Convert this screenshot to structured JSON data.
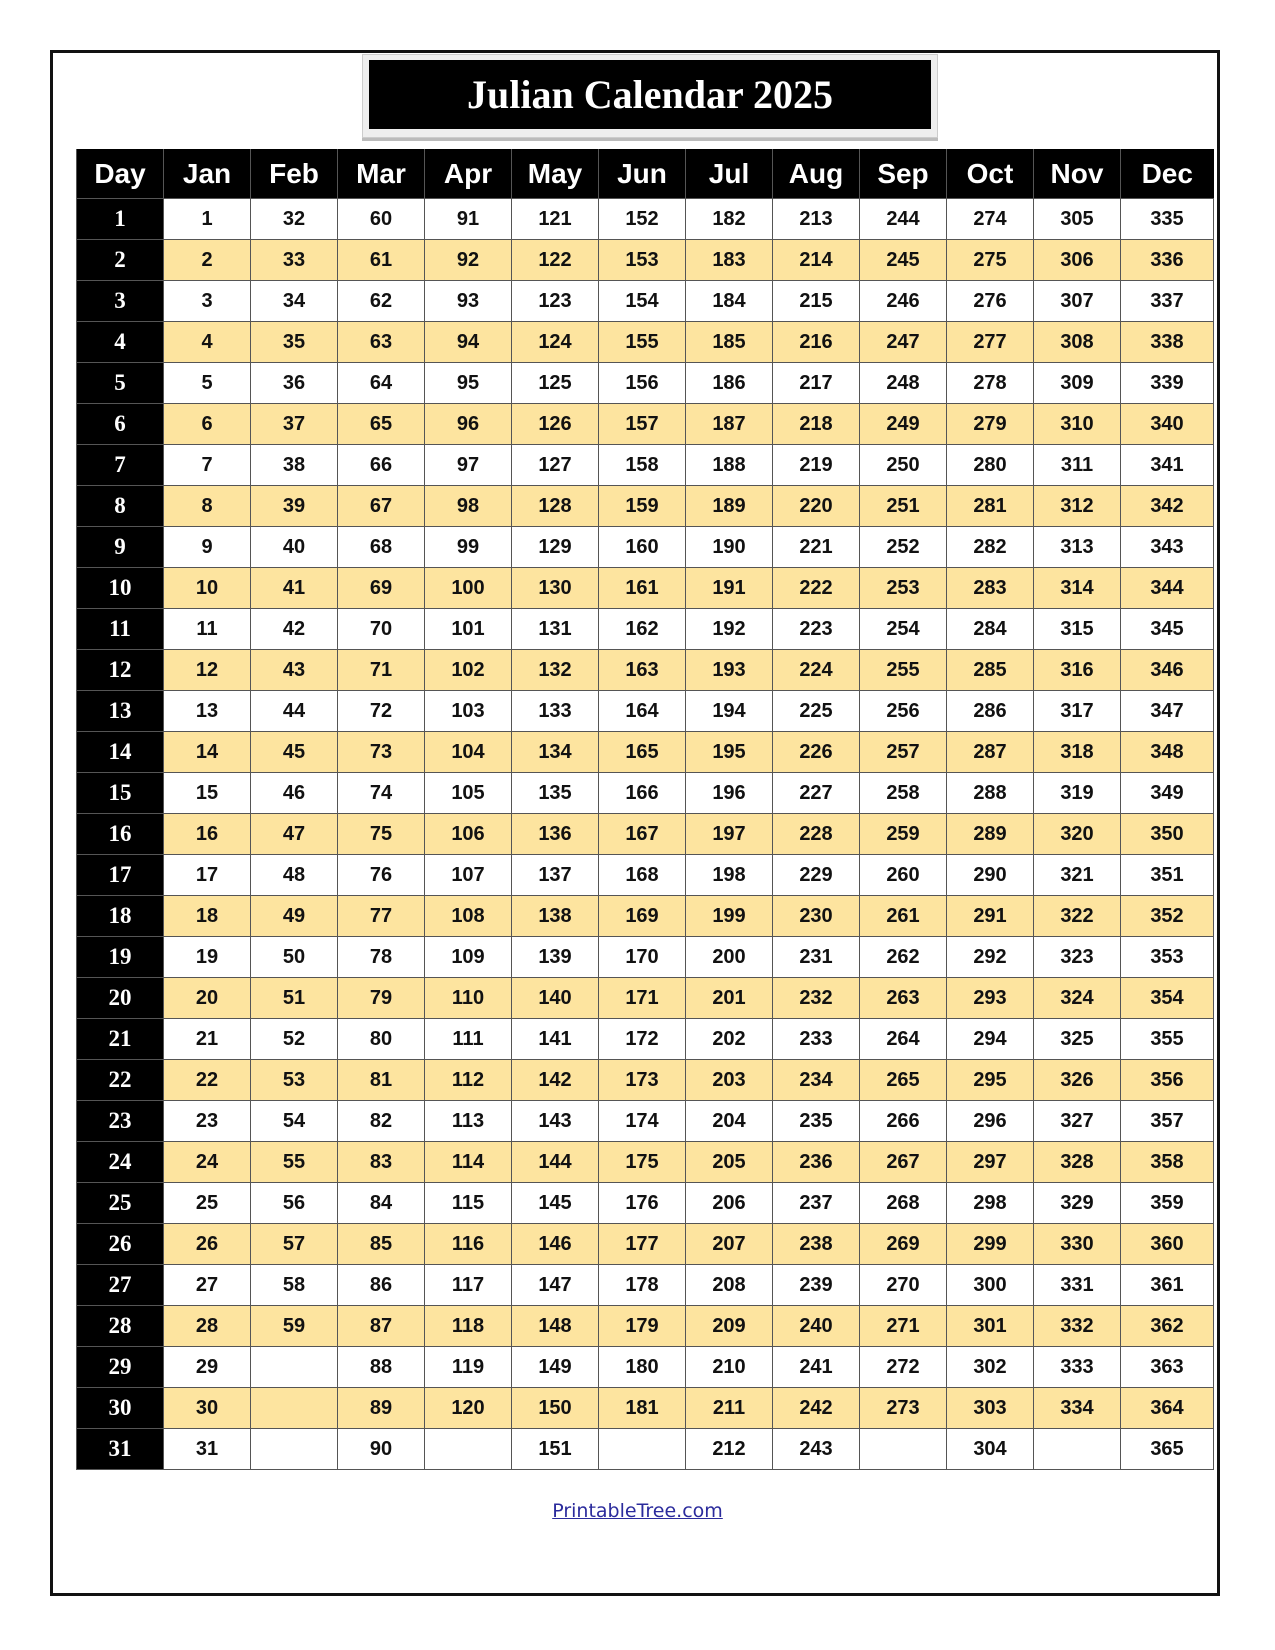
{
  "title": "Julian Calendar 2025",
  "headers": [
    "Day",
    "Jan",
    "Feb",
    "Mar",
    "Apr",
    "May",
    "Jun",
    "Jul",
    "Aug",
    "Sep",
    "Oct",
    "Nov",
    "Dec"
  ],
  "colors": {
    "header_bg": "#000000",
    "alt_row_bg": "#fde49f",
    "link": "#2b2b9c"
  },
  "rows": [
    [
      "1",
      "1",
      "32",
      "60",
      "91",
      "121",
      "152",
      "182",
      "213",
      "244",
      "274",
      "305",
      "335"
    ],
    [
      "2",
      "2",
      "33",
      "61",
      "92",
      "122",
      "153",
      "183",
      "214",
      "245",
      "275",
      "306",
      "336"
    ],
    [
      "3",
      "3",
      "34",
      "62",
      "93",
      "123",
      "154",
      "184",
      "215",
      "246",
      "276",
      "307",
      "337"
    ],
    [
      "4",
      "4",
      "35",
      "63",
      "94",
      "124",
      "155",
      "185",
      "216",
      "247",
      "277",
      "308",
      "338"
    ],
    [
      "5",
      "5",
      "36",
      "64",
      "95",
      "125",
      "156",
      "186",
      "217",
      "248",
      "278",
      "309",
      "339"
    ],
    [
      "6",
      "6",
      "37",
      "65",
      "96",
      "126",
      "157",
      "187",
      "218",
      "249",
      "279",
      "310",
      "340"
    ],
    [
      "7",
      "7",
      "38",
      "66",
      "97",
      "127",
      "158",
      "188",
      "219",
      "250",
      "280",
      "311",
      "341"
    ],
    [
      "8",
      "8",
      "39",
      "67",
      "98",
      "128",
      "159",
      "189",
      "220",
      "251",
      "281",
      "312",
      "342"
    ],
    [
      "9",
      "9",
      "40",
      "68",
      "99",
      "129",
      "160",
      "190",
      "221",
      "252",
      "282",
      "313",
      "343"
    ],
    [
      "10",
      "10",
      "41",
      "69",
      "100",
      "130",
      "161",
      "191",
      "222",
      "253",
      "283",
      "314",
      "344"
    ],
    [
      "11",
      "11",
      "42",
      "70",
      "101",
      "131",
      "162",
      "192",
      "223",
      "254",
      "284",
      "315",
      "345"
    ],
    [
      "12",
      "12",
      "43",
      "71",
      "102",
      "132",
      "163",
      "193",
      "224",
      "255",
      "285",
      "316",
      "346"
    ],
    [
      "13",
      "13",
      "44",
      "72",
      "103",
      "133",
      "164",
      "194",
      "225",
      "256",
      "286",
      "317",
      "347"
    ],
    [
      "14",
      "14",
      "45",
      "73",
      "104",
      "134",
      "165",
      "195",
      "226",
      "257",
      "287",
      "318",
      "348"
    ],
    [
      "15",
      "15",
      "46",
      "74",
      "105",
      "135",
      "166",
      "196",
      "227",
      "258",
      "288",
      "319",
      "349"
    ],
    [
      "16",
      "16",
      "47",
      "75",
      "106",
      "136",
      "167",
      "197",
      "228",
      "259",
      "289",
      "320",
      "350"
    ],
    [
      "17",
      "17",
      "48",
      "76",
      "107",
      "137",
      "168",
      "198",
      "229",
      "260",
      "290",
      "321",
      "351"
    ],
    [
      "18",
      "18",
      "49",
      "77",
      "108",
      "138",
      "169",
      "199",
      "230",
      "261",
      "291",
      "322",
      "352"
    ],
    [
      "19",
      "19",
      "50",
      "78",
      "109",
      "139",
      "170",
      "200",
      "231",
      "262",
      "292",
      "323",
      "353"
    ],
    [
      "20",
      "20",
      "51",
      "79",
      "110",
      "140",
      "171",
      "201",
      "232",
      "263",
      "293",
      "324",
      "354"
    ],
    [
      "21",
      "21",
      "52",
      "80",
      "111",
      "141",
      "172",
      "202",
      "233",
      "264",
      "294",
      "325",
      "355"
    ],
    [
      "22",
      "22",
      "53",
      "81",
      "112",
      "142",
      "173",
      "203",
      "234",
      "265",
      "295",
      "326",
      "356"
    ],
    [
      "23",
      "23",
      "54",
      "82",
      "113",
      "143",
      "174",
      "204",
      "235",
      "266",
      "296",
      "327",
      "357"
    ],
    [
      "24",
      "24",
      "55",
      "83",
      "114",
      "144",
      "175",
      "205",
      "236",
      "267",
      "297",
      "328",
      "358"
    ],
    [
      "25",
      "25",
      "56",
      "84",
      "115",
      "145",
      "176",
      "206",
      "237",
      "268",
      "298",
      "329",
      "359"
    ],
    [
      "26",
      "26",
      "57",
      "85",
      "116",
      "146",
      "177",
      "207",
      "238",
      "269",
      "299",
      "330",
      "360"
    ],
    [
      "27",
      "27",
      "58",
      "86",
      "117",
      "147",
      "178",
      "208",
      "239",
      "270",
      "300",
      "331",
      "361"
    ],
    [
      "28",
      "28",
      "59",
      "87",
      "118",
      "148",
      "179",
      "209",
      "240",
      "271",
      "301",
      "332",
      "362"
    ],
    [
      "29",
      "29",
      "",
      "88",
      "119",
      "149",
      "180",
      "210",
      "241",
      "272",
      "302",
      "333",
      "363"
    ],
    [
      "30",
      "30",
      "",
      "89",
      "120",
      "150",
      "181",
      "211",
      "242",
      "273",
      "303",
      "334",
      "364"
    ],
    [
      "31",
      "31",
      "",
      "90",
      "",
      "151",
      "",
      "212",
      "243",
      "",
      "304",
      "",
      "365"
    ]
  ],
  "footer_link": "PrintableTree.com"
}
